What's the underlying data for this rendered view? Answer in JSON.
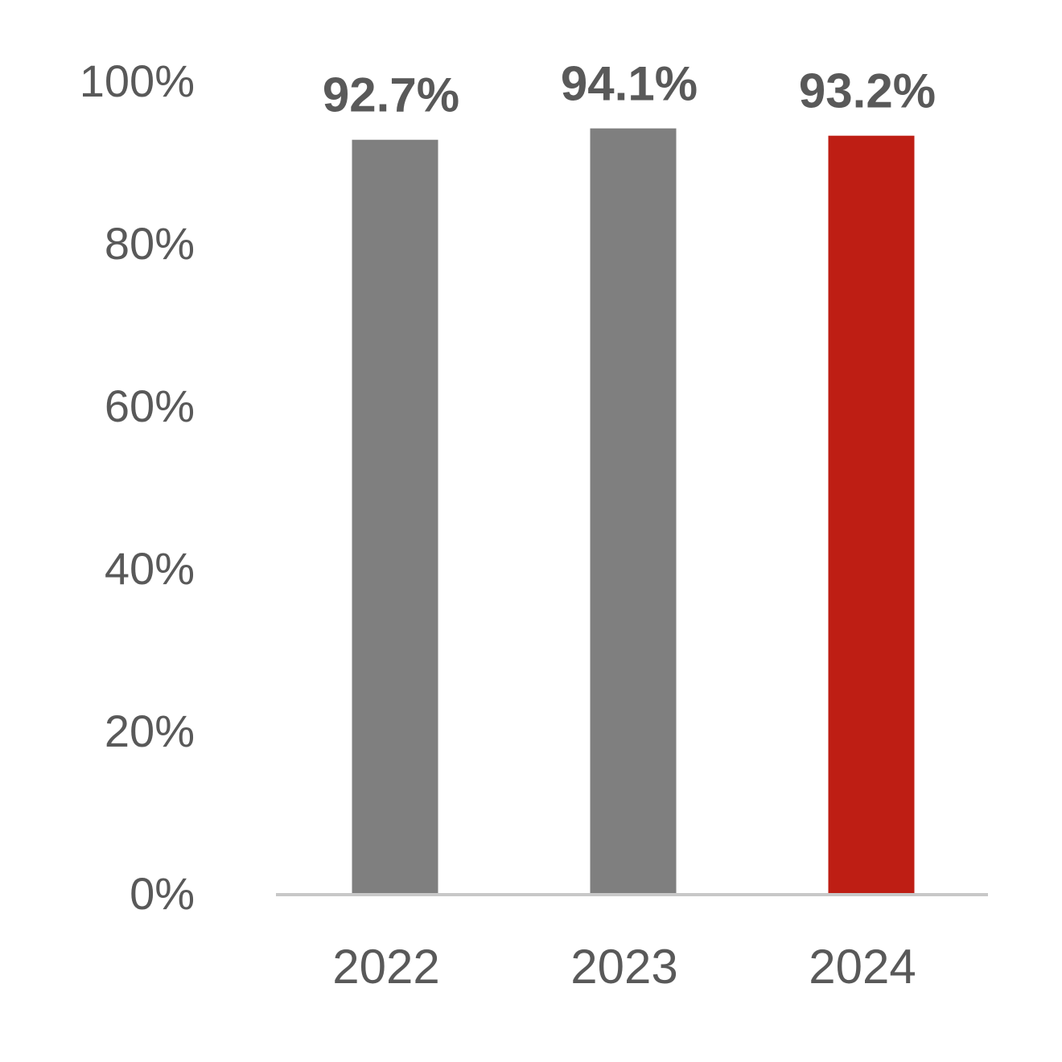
{
  "chart_data": {
    "type": "bar",
    "title": "",
    "xlabel": "",
    "ylabel": "",
    "categories": [
      "2022",
      "2023",
      "2024"
    ],
    "values": [
      92.7,
      94.1,
      93.2
    ],
    "data_labels": [
      "92.7%",
      "94.1%",
      "93.2%"
    ],
    "bar_colors": [
      "#7f7f7f",
      "#7f7f7f",
      "#be1e14"
    ],
    "ylim": [
      0,
      100
    ],
    "yticks": [
      0,
      20,
      40,
      60,
      80,
      100
    ],
    "ytick_labels": [
      "0%",
      "20%",
      "40%",
      "60%",
      "80%",
      "100%"
    ],
    "axis_color": "#c8c8c8",
    "text_color": "#595959",
    "grid": false,
    "legend": "none"
  }
}
